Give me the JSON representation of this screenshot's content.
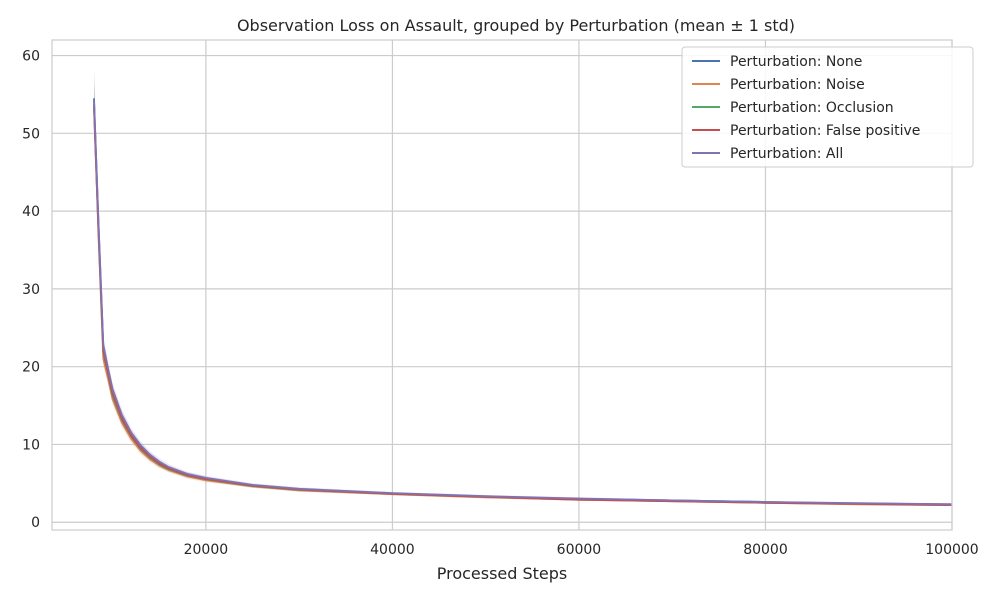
{
  "chart_data": {
    "type": "line",
    "title": "Observation Loss on Assault, grouped by Perturbation (mean ± 1 std)",
    "xlabel": "Processed Steps",
    "ylabel": "",
    "xlim": [
      3500,
      100000
    ],
    "ylim": [
      -1,
      62
    ],
    "xticks": [
      20000,
      40000,
      60000,
      80000,
      100000
    ],
    "yticks": [
      0,
      10,
      20,
      30,
      40,
      50,
      60
    ],
    "grid": true,
    "legend_position": "top-right",
    "band": "mean ± 1 std",
    "series": [
      {
        "name": "Perturbation: None",
        "color": "#4c72b0",
        "x": [
          8000,
          8500,
          9000,
          9500,
          10000,
          11000,
          12000,
          13000,
          14000,
          15000,
          16000,
          18000,
          20000,
          25000,
          30000,
          40000,
          50000,
          60000,
          70000,
          80000,
          90000,
          100000
        ],
        "y": [
          54.5,
          38,
          22.5,
          19.5,
          16.8,
          13.5,
          11.3,
          9.7,
          8.5,
          7.6,
          6.9,
          6.1,
          5.6,
          4.7,
          4.2,
          3.7,
          3.3,
          3.0,
          2.8,
          2.6,
          2.4,
          2.3
        ],
        "std": [
          3.5,
          1.5,
          1.0,
          0.8,
          0.7,
          0.6,
          0.5,
          0.45,
          0.4,
          0.35,
          0.3,
          0.3,
          0.25,
          0.2,
          0.2,
          0.15,
          0.15,
          0.15,
          0.12,
          0.12,
          0.1,
          0.1
        ]
      },
      {
        "name": "Perturbation: Noise",
        "color": "#dd8452",
        "x": [
          8000,
          8500,
          9000,
          9500,
          10000,
          11000,
          12000,
          13000,
          14000,
          15000,
          16000,
          18000,
          20000,
          25000,
          30000,
          40000,
          50000,
          60000,
          70000,
          80000,
          90000,
          100000
        ],
        "y": [
          53.5,
          36.5,
          21,
          18.5,
          15.8,
          12.8,
          10.7,
          9.2,
          8.1,
          7.3,
          6.7,
          5.9,
          5.4,
          4.6,
          4.1,
          3.6,
          3.2,
          2.9,
          2.7,
          2.5,
          2.3,
          2.2
        ],
        "std": [
          3.0,
          1.5,
          1.0,
          0.8,
          0.7,
          0.6,
          0.5,
          0.45,
          0.4,
          0.35,
          0.3,
          0.3,
          0.25,
          0.2,
          0.2,
          0.15,
          0.15,
          0.15,
          0.12,
          0.12,
          0.1,
          0.1
        ]
      },
      {
        "name": "Perturbation: Occlusion",
        "color": "#55a868",
        "x": [
          8000,
          8500,
          9000,
          9500,
          10000,
          11000,
          12000,
          13000,
          14000,
          15000,
          16000,
          18000,
          20000,
          25000,
          30000,
          40000,
          50000,
          60000,
          70000,
          80000,
          90000,
          100000
        ],
        "y": [
          53.8,
          37,
          21.8,
          19,
          16.2,
          13.1,
          11,
          9.4,
          8.3,
          7.4,
          6.8,
          6.0,
          5.5,
          4.65,
          4.15,
          3.65,
          3.25,
          2.95,
          2.75,
          2.55,
          2.4,
          2.25
        ],
        "std": [
          3.2,
          1.5,
          1.0,
          0.8,
          0.7,
          0.6,
          0.5,
          0.45,
          0.4,
          0.35,
          0.3,
          0.3,
          0.25,
          0.2,
          0.2,
          0.15,
          0.15,
          0.15,
          0.12,
          0.12,
          0.1,
          0.1
        ]
      },
      {
        "name": "Perturbation: False positive",
        "color": "#c44e52",
        "x": [
          8000,
          8500,
          9000,
          9500,
          10000,
          11000,
          12000,
          13000,
          14000,
          15000,
          16000,
          18000,
          20000,
          25000,
          30000,
          40000,
          50000,
          60000,
          70000,
          80000,
          90000,
          100000
        ],
        "y": [
          53.2,
          37.2,
          22,
          19.2,
          16.5,
          13.3,
          11.1,
          9.5,
          8.4,
          7.5,
          6.9,
          6.05,
          5.55,
          4.7,
          4.2,
          3.65,
          3.25,
          2.9,
          2.7,
          2.5,
          2.35,
          2.2
        ],
        "std": [
          3.0,
          1.5,
          1.0,
          0.8,
          0.7,
          0.6,
          0.5,
          0.45,
          0.4,
          0.35,
          0.3,
          0.3,
          0.25,
          0.2,
          0.2,
          0.15,
          0.15,
          0.15,
          0.12,
          0.12,
          0.1,
          0.1
        ]
      },
      {
        "name": "Perturbation: All",
        "color": "#8172b3",
        "x": [
          8000,
          8500,
          9000,
          9500,
          10000,
          11000,
          12000,
          13000,
          14000,
          15000,
          16000,
          18000,
          20000,
          25000,
          30000,
          40000,
          50000,
          60000,
          70000,
          80000,
          90000,
          100000
        ],
        "y": [
          54.2,
          38.2,
          22.8,
          19.8,
          17.1,
          13.8,
          11.5,
          9.9,
          8.7,
          7.8,
          7.1,
          6.2,
          5.7,
          4.8,
          4.3,
          3.75,
          3.35,
          3.05,
          2.8,
          2.6,
          2.45,
          2.3
        ],
        "std": [
          4.0,
          1.6,
          1.1,
          0.9,
          0.8,
          0.7,
          0.6,
          0.5,
          0.45,
          0.4,
          0.35,
          0.3,
          0.25,
          0.2,
          0.2,
          0.15,
          0.15,
          0.15,
          0.12,
          0.12,
          0.1,
          0.1
        ]
      }
    ]
  }
}
